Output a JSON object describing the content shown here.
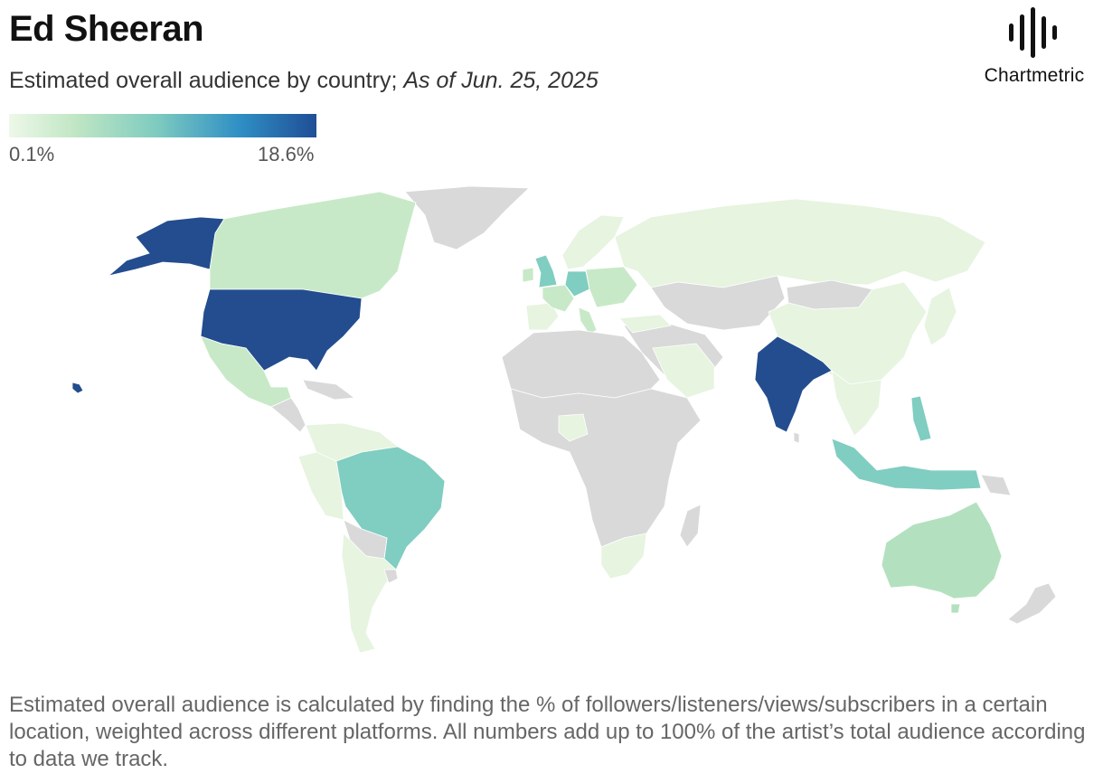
{
  "header": {
    "title": "Ed Sheeran",
    "subtitle": "Estimated overall audience by country;",
    "date": "As of Jun. 25, 2025",
    "brand": "Chartmetric"
  },
  "legend": {
    "min_label": "0.1%",
    "max_label": "18.6%",
    "color_stops": [
      "#eef8e8",
      "#bfe6c4",
      "#7ecbc0",
      "#2f8fc4",
      "#1f4e96"
    ]
  },
  "map_colors": {
    "no_data": "#d9d9d9",
    "very_low": "#e6f4e0",
    "low": "#c8e9c7",
    "mid_low": "#b3e1bf",
    "mid": "#80cdc1",
    "high": "#234d8e"
  },
  "chart_data": {
    "type": "choropleth",
    "scale_min": 0.1,
    "scale_max": 18.6,
    "regions": [
      {
        "id": "usa",
        "level": "high"
      },
      {
        "id": "india",
        "level": "high"
      },
      {
        "id": "brazil",
        "level": "mid"
      },
      {
        "id": "uk",
        "level": "mid"
      },
      {
        "id": "germany",
        "level": "mid"
      },
      {
        "id": "philippines",
        "level": "mid"
      },
      {
        "id": "indonesia",
        "level": "mid"
      },
      {
        "id": "canada",
        "level": "low"
      },
      {
        "id": "mexico",
        "level": "low"
      },
      {
        "id": "australia",
        "level": "mid_low"
      },
      {
        "id": "france",
        "level": "low"
      },
      {
        "id": "south-africa",
        "level": "very_low"
      },
      {
        "id": "russia",
        "level": "very_low"
      },
      {
        "id": "china",
        "level": "very_low"
      }
    ]
  },
  "footnote": "Estimated overall audience is calculated by finding the % of followers/listeners/views/subscribers in a certain location, weighted across different platforms. All numbers add up to 100% of the artist’s total audience according to data we track."
}
